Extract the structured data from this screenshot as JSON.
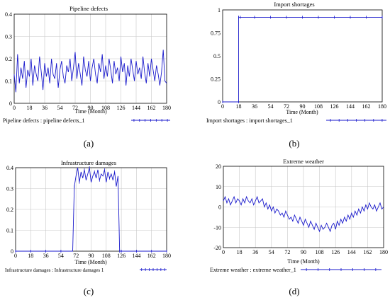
{
  "colors": {
    "series": "#1a1acc",
    "grid": "#c8c8c8",
    "frame": "#000000"
  },
  "chart_data": [
    {
      "type": "line",
      "title": "Pipeline defects",
      "xlabel": "Time (Month)",
      "xlim": [
        0,
        180
      ],
      "ylim": [
        0,
        0.4
      ],
      "xticks": [
        "0",
        "18",
        "36",
        "54",
        "72",
        "90",
        "108",
        "126",
        "144",
        "162",
        "180"
      ],
      "yticks": [
        "0",
        "0.1",
        "0.2",
        "0.3",
        "0.4"
      ],
      "legend": "Pipeline defects : pipeline defects_1",
      "caption": "(a)",
      "grid": true,
      "series": [
        {
          "name": "pipeline defects_1",
          "x": [
            0,
            2,
            4,
            6,
            8,
            10,
            12,
            14,
            16,
            18,
            20,
            22,
            24,
            26,
            28,
            30,
            32,
            34,
            36,
            38,
            40,
            42,
            44,
            46,
            48,
            50,
            52,
            54,
            56,
            58,
            60,
            62,
            64,
            66,
            68,
            70,
            72,
            74,
            76,
            78,
            80,
            82,
            84,
            86,
            88,
            90,
            92,
            94,
            96,
            98,
            100,
            102,
            104,
            106,
            108,
            110,
            112,
            114,
            116,
            118,
            120,
            122,
            124,
            126,
            128,
            130,
            132,
            134,
            136,
            138,
            140,
            142,
            144,
            146,
            148,
            150,
            152,
            154,
            156,
            158,
            160,
            162,
            164,
            166,
            168,
            170,
            172,
            174,
            176,
            178,
            180
          ],
          "values": [
            0.13,
            0.05,
            0.22,
            0.09,
            0.16,
            0.11,
            0.19,
            0.07,
            0.15,
            0.12,
            0.2,
            0.08,
            0.17,
            0.13,
            0.1,
            0.21,
            0.14,
            0.06,
            0.18,
            0.12,
            0.16,
            0.09,
            0.2,
            0.13,
            0.11,
            0.18,
            0.07,
            0.15,
            0.19,
            0.12,
            0.09,
            0.17,
            0.14,
            0.2,
            0.1,
            0.16,
            0.23,
            0.11,
            0.18,
            0.13,
            0.08,
            0.21,
            0.15,
            0.12,
            0.19,
            0.1,
            0.16,
            0.2,
            0.13,
            0.09,
            0.18,
            0.14,
            0.22,
            0.11,
            0.17,
            0.12,
            0.2,
            0.15,
            0.09,
            0.19,
            0.13,
            0.16,
            0.1,
            0.21,
            0.14,
            0.18,
            0.08,
            0.17,
            0.12,
            0.2,
            0.15,
            0.1,
            0.19,
            0.13,
            0.16,
            0.11,
            0.21,
            0.14,
            0.09,
            0.18,
            0.12,
            0.2,
            0.15,
            0.1,
            0.17,
            0.13,
            0.08,
            0.14,
            0.24,
            0.1,
            0.09
          ]
        }
      ]
    },
    {
      "type": "line",
      "title": "Import shortages",
      "xlabel": "Time (Month)",
      "xlim": [
        0,
        180
      ],
      "ylim": [
        0,
        1
      ],
      "xticks": [
        "0",
        "18",
        "36",
        "54",
        "72",
        "90",
        "108",
        "126",
        "144",
        "162",
        "180"
      ],
      "yticks": [
        "0",
        "0.25",
        "0.5",
        "0.75",
        "1"
      ],
      "legend": "Import shortages : import shortages_1",
      "caption": "(b)",
      "grid": false,
      "series": [
        {
          "name": "import shortages_1",
          "x": [
            0,
            18,
            18.01,
            20,
            180
          ],
          "values": [
            0,
            0,
            0.92,
            0.92,
            0.92
          ]
        }
      ]
    },
    {
      "type": "line",
      "title": "Infrastructure damages",
      "xlabel": "Time (Month)",
      "xlim": [
        0,
        180
      ],
      "ylim": [
        0,
        0.4
      ],
      "xticks": [
        "0",
        "18",
        "36",
        "54",
        "72",
        "90",
        "108",
        "126",
        "144",
        "162",
        "180"
      ],
      "yticks": [
        "0",
        "0.1",
        "0.2",
        "0.3",
        "0.4"
      ],
      "legend": "Infrastructure damages : Infrastructure damages 1",
      "caption": "(c)",
      "grid": true,
      "series": [
        {
          "name": "Infrastructure damages 1",
          "x": [
            0,
            66,
            68,
            70,
            72,
            74,
            76,
            78,
            80,
            82,
            84,
            86,
            88,
            90,
            92,
            94,
            96,
            98,
            100,
            102,
            104,
            106,
            108,
            110,
            112,
            114,
            116,
            118,
            120,
            122,
            124,
            126,
            180
          ],
          "values": [
            0,
            0,
            0,
            0.31,
            0.36,
            0.4,
            0.33,
            0.38,
            0.35,
            0.39,
            0.34,
            0.37,
            0.4,
            0.33,
            0.36,
            0.38,
            0.35,
            0.39,
            0.34,
            0.37,
            0.36,
            0.39,
            0.33,
            0.38,
            0.35,
            0.37,
            0.34,
            0.38,
            0.31,
            0.36,
            0,
            0,
            0
          ]
        }
      ]
    },
    {
      "type": "line",
      "title": "Extreme weather",
      "xlabel": "Time (Month)",
      "xlim": [
        0,
        180
      ],
      "ylim": [
        -20,
        20
      ],
      "xticks": [
        "0",
        "18",
        "36",
        "54",
        "72",
        "90",
        "108",
        "126",
        "144",
        "162",
        "180"
      ],
      "yticks": [
        "-20",
        "-10",
        "0",
        "10",
        "20"
      ],
      "legend": "Extreme weather : extreme weather_1",
      "caption": "(d)",
      "grid": true,
      "series": [
        {
          "name": "extreme weather_1",
          "x": [
            0,
            2,
            4,
            6,
            8,
            10,
            12,
            14,
            16,
            18,
            20,
            22,
            24,
            26,
            28,
            30,
            32,
            34,
            36,
            38,
            40,
            42,
            44,
            46,
            48,
            50,
            52,
            54,
            56,
            58,
            60,
            62,
            64,
            66,
            68,
            70,
            72,
            74,
            76,
            78,
            80,
            82,
            84,
            86,
            88,
            90,
            92,
            94,
            96,
            98,
            100,
            102,
            104,
            106,
            108,
            110,
            112,
            114,
            116,
            118,
            120,
            122,
            124,
            126,
            128,
            130,
            132,
            134,
            136,
            138,
            140,
            142,
            144,
            146,
            148,
            150,
            152,
            154,
            156,
            158,
            160,
            162,
            164,
            166,
            168,
            170,
            172,
            174,
            176,
            178,
            180
          ],
          "values": [
            3,
            5,
            2,
            4,
            1,
            3,
            5,
            2,
            4,
            3,
            1,
            4,
            2,
            5,
            3,
            2,
            4,
            1,
            3,
            5,
            2,
            3,
            4,
            0,
            2,
            -1,
            1,
            -2,
            0,
            -3,
            -1,
            -2,
            -4,
            -3,
            -5,
            -2,
            -4,
            -6,
            -5,
            -7,
            -4,
            -6,
            -8,
            -5,
            -7,
            -9,
            -6,
            -8,
            -10,
            -7,
            -9,
            -11,
            -8,
            -10,
            -12,
            -9,
            -11,
            -10,
            -8,
            -10,
            -12,
            -9,
            -8,
            -11,
            -7,
            -9,
            -6,
            -8,
            -5,
            -7,
            -4,
            -6,
            -3,
            -5,
            -2,
            -4,
            -1,
            -3,
            0,
            -2,
            1,
            -1,
            2,
            0,
            -1,
            1,
            -2,
            0,
            2,
            -1,
            0
          ]
        }
      ]
    }
  ]
}
